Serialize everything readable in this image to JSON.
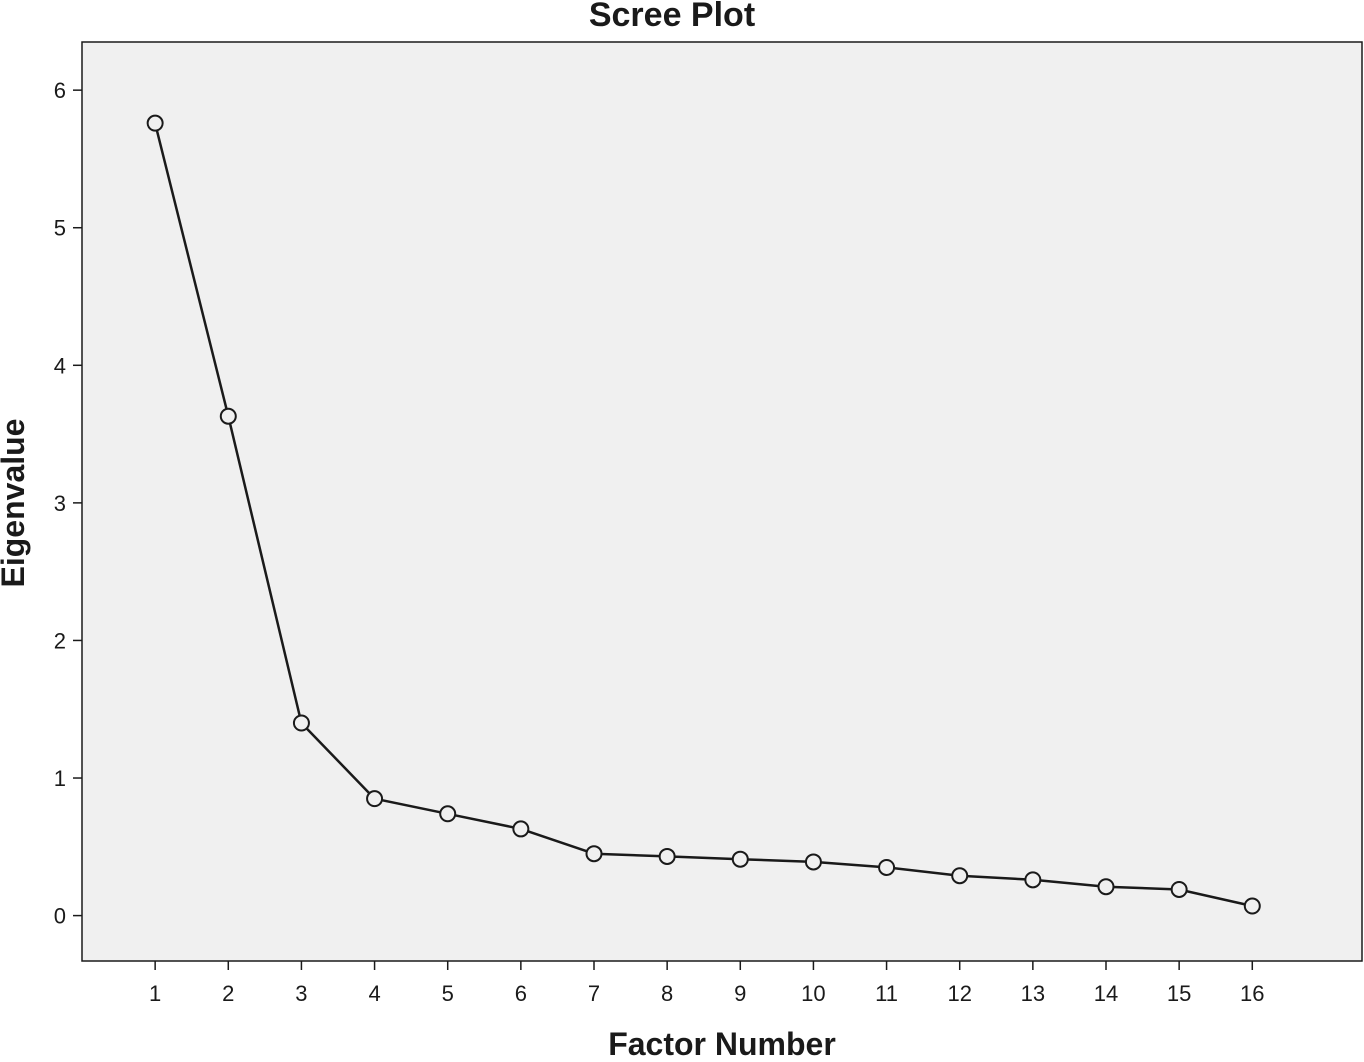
{
  "chart_data": {
    "type": "line",
    "title": "Scree Plot",
    "xlabel": "Factor Number",
    "ylabel": "Eigenvalue",
    "x": [
      1,
      2,
      3,
      4,
      5,
      6,
      7,
      8,
      9,
      10,
      11,
      12,
      13,
      14,
      15,
      16
    ],
    "series": [
      {
        "values": [
          5.76,
          3.63,
          1.4,
          0.85,
          0.74,
          0.63,
          0.45,
          0.43,
          0.41,
          0.39,
          0.35,
          0.29,
          0.26,
          0.21,
          0.19,
          0.07
        ]
      }
    ],
    "xlim": [
      0.0,
      17.5
    ],
    "ylim": [
      -0.33,
      6.35
    ],
    "yticks": [
      0,
      1,
      2,
      3,
      4,
      5,
      6
    ],
    "xticks": [
      1,
      2,
      3,
      4,
      5,
      6,
      7,
      8,
      9,
      10,
      11,
      12,
      13,
      14,
      15,
      16
    ],
    "grid": false,
    "legend": "none",
    "marker": "open-circle",
    "colors": {
      "plot_background": "#f0f0f0",
      "line": "#1a1a1a",
      "axis": "#1a1a1a",
      "page_background": "#ffffff"
    }
  }
}
